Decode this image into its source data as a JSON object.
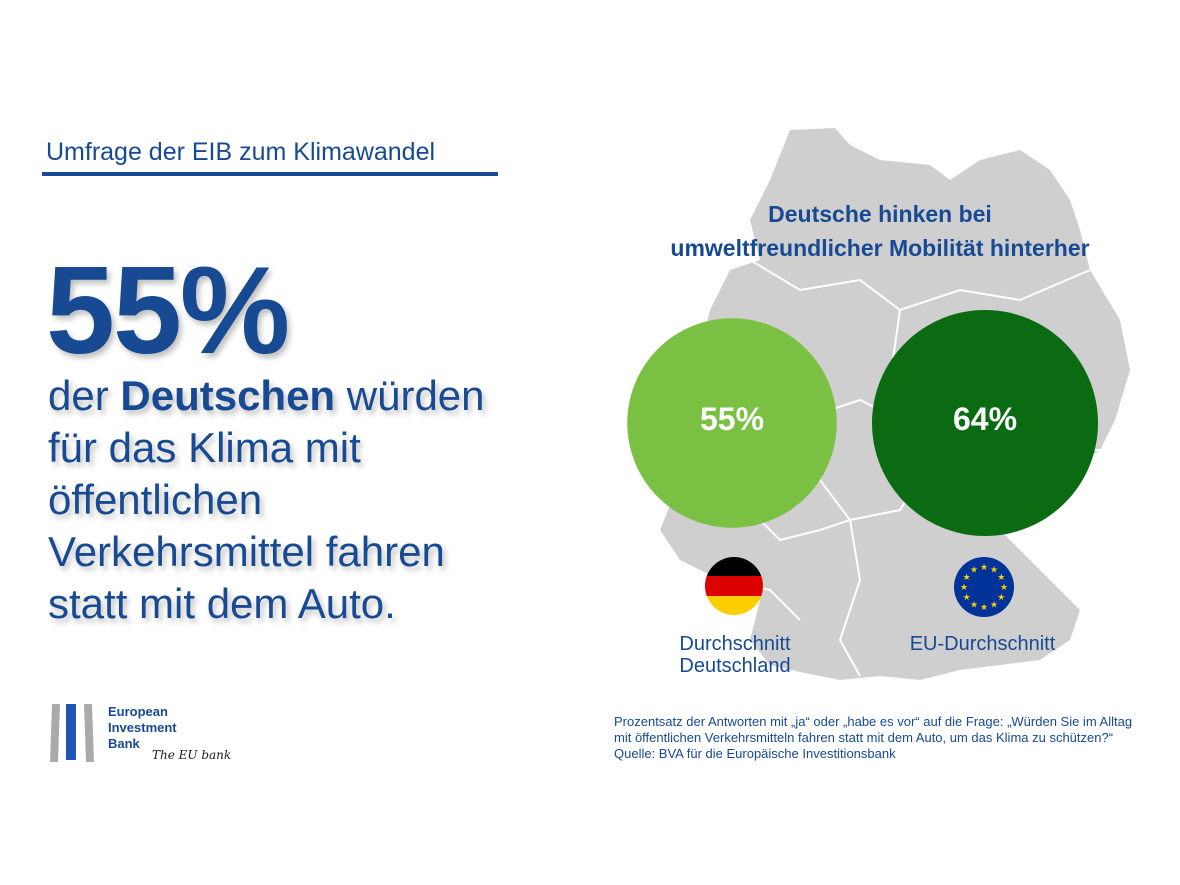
{
  "header": {
    "survey_title": "Umfrage der EIB zum Klimawandel"
  },
  "headline": {
    "percent": "55%",
    "line_pre": "der ",
    "line_bold": "Deutschen",
    "line_post": " würden",
    "line2": "für das Klima mit",
    "line3": "öffentlichen",
    "line4": "Verkehrsmittel fahren",
    "line5": "statt mit dem Auto."
  },
  "chart_data": {
    "type": "bubble",
    "title": "Deutsche hinken bei umweltfreundlicher Mobilität hinterher",
    "title_line1": "Deutsche hinken bei",
    "title_line2": "umweltfreundlicher Mobilität hinterher",
    "categories": [
      "Durchschnitt Deutschland",
      "EU-Durchschnitt"
    ],
    "values": [
      55,
      64
    ],
    "labels": [
      "55%",
      "64%"
    ],
    "colors": [
      "#7ac143",
      "#0b6b12"
    ],
    "icons": [
      "germany-flag-icon",
      "eu-flag-icon"
    ]
  },
  "captions": {
    "de_line1": "Durchschnitt",
    "de_line2": "Deutschland",
    "eu": "EU-Durchschnitt"
  },
  "note": {
    "line1": "Prozentsatz der Antworten mit „ja“ oder „habe es vor“ auf die Frage: „Würden Sie im Alltag",
    "line2": "mit öffentlichen Verkehrsmitteln fahren statt mit dem Auto, um das Klima zu schützen?“",
    "line3": "Quelle: BVA für die Europäische Investitionsbank"
  },
  "logo": {
    "line1": "European",
    "line2": "Investment",
    "line3": "Bank",
    "tagline": "The EU bank"
  },
  "colors": {
    "brand_blue": "#174a93",
    "map_gray": "#cfcfcf"
  }
}
